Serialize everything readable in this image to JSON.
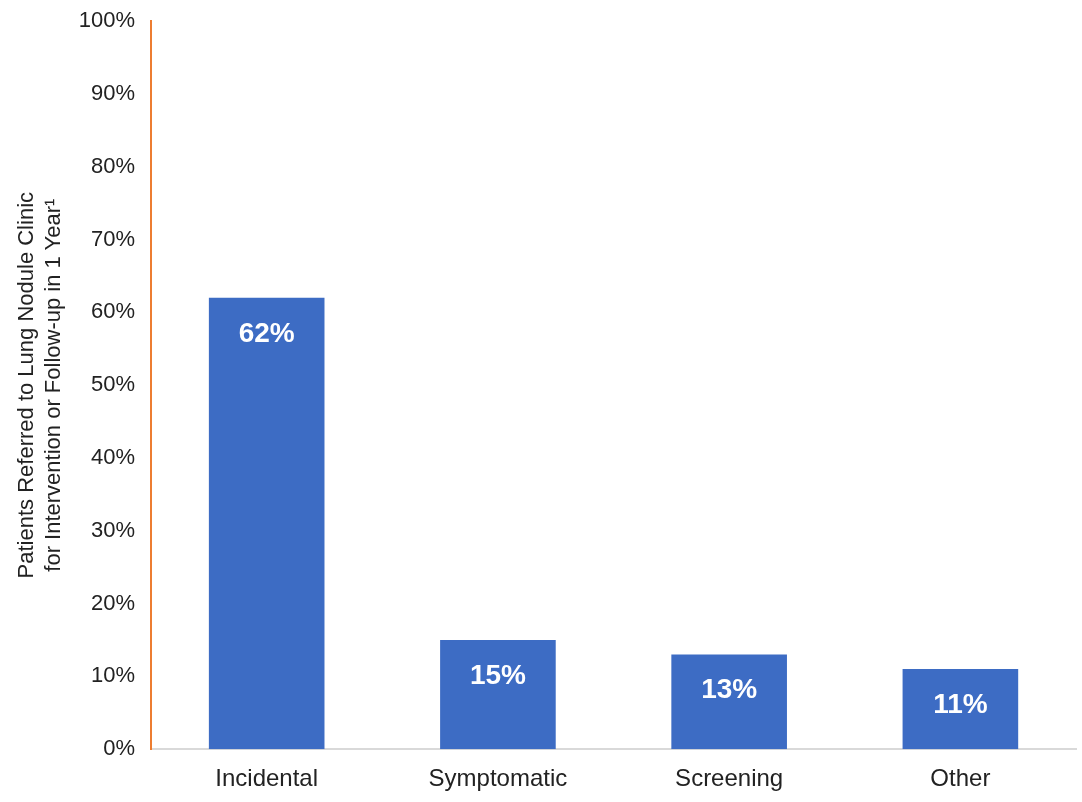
{
  "chart_data": {
    "type": "bar",
    "ylabel": "Patients Referred to Lung Nodule Clinic for Intervention or Follow-up in 1 Year¹",
    "categories": [
      "Incidental",
      "Symptomatic",
      "Screening",
      "Other"
    ],
    "values": [
      62,
      15,
      13,
      11
    ],
    "color": "#3d6cc4",
    "value_labels": [
      "62%",
      "15%",
      "13%",
      "11%"
    ],
    "ylim": [
      0,
      100
    ],
    "yticks": [
      {
        "value": 0,
        "label": "0%"
      },
      {
        "value": 10,
        "label": "10%"
      },
      {
        "value": 20,
        "label": "20%"
      },
      {
        "value": 30,
        "label": "30%"
      },
      {
        "value": 40,
        "label": "40%"
      },
      {
        "value": 50,
        "label": "50%"
      },
      {
        "value": 60,
        "label": "60%"
      },
      {
        "value": 70,
        "label": "70%"
      },
      {
        "value": 80,
        "label": "80%"
      },
      {
        "value": 90,
        "label": "90%"
      },
      {
        "value": 100,
        "label": "100%"
      }
    ],
    "grid": false,
    "legend": false
  }
}
